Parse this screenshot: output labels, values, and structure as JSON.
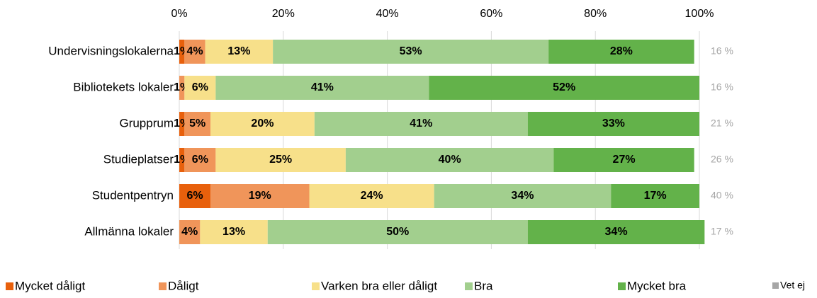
{
  "chart_data": {
    "type": "stacked_barh",
    "categories": [
      "Undervisningslokalerna",
      "Bibliotekets lokaler",
      "Grupprum",
      "Studieplatser",
      "Studentpentryn",
      "Allmänna lokaler"
    ],
    "series": [
      {
        "name": "Mycket dåligt",
        "color": "#e8600c",
        "values": [
          1,
          null,
          1,
          1,
          6,
          null
        ],
        "value_labels": [
          "1%",
          null,
          "1%",
          "1%",
          "6%",
          null
        ]
      },
      {
        "name": "Dåligt",
        "color": "#f0955a",
        "values": [
          4,
          1,
          5,
          6,
          19,
          4
        ],
        "value_labels": [
          "4%",
          "1%",
          "5%",
          "6%",
          "19%",
          "4%"
        ]
      },
      {
        "name": "Varken bra eller dåligt",
        "color": "#f7e08a",
        "values": [
          13,
          6,
          20,
          25,
          24,
          13
        ],
        "value_labels": [
          "13%",
          "6%",
          "20%",
          "25%",
          "24%",
          "13%"
        ]
      },
      {
        "name": "Bra",
        "color": "#a2cf8e",
        "values": [
          53,
          41,
          41,
          40,
          34,
          50
        ],
        "value_labels": [
          "53%",
          "41%",
          "41%",
          "40%",
          "34%",
          "50%"
        ]
      },
      {
        "name": "Mycket bra",
        "color": "#63b24a",
        "values": [
          28,
          52,
          33,
          27,
          17,
          34
        ],
        "value_labels": [
          "28%",
          "52%",
          "33%",
          "27%",
          "17%",
          "34%"
        ]
      }
    ],
    "vet_ej": {
      "name": "Vet ej",
      "color": "#a6a6a6",
      "values": [
        16,
        16,
        21,
        26,
        40,
        17
      ],
      "value_labels": [
        "16 %",
        "16 %",
        "21 %",
        "26 %",
        "40 %",
        "17 %"
      ]
    },
    "xlim": [
      0,
      100
    ],
    "xticks": [
      {
        "value": 0,
        "label": "0%"
      },
      {
        "value": 20,
        "label": "20%"
      },
      {
        "value": 40,
        "label": "40%"
      },
      {
        "value": 60,
        "label": "60%"
      },
      {
        "value": 80,
        "label": "80%"
      },
      {
        "value": 100,
        "label": "100%"
      }
    ],
    "grid": true
  }
}
